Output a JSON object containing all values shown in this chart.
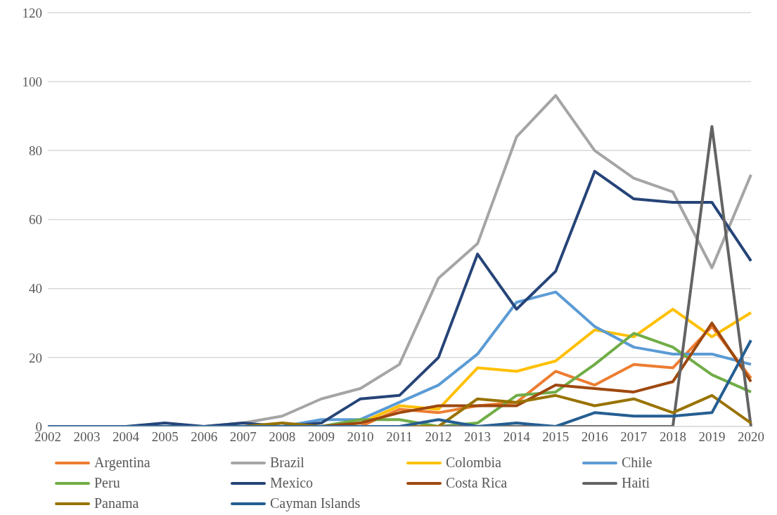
{
  "chart_data": {
    "type": "line",
    "categories": [
      "2002",
      "2003",
      "2004",
      "2005",
      "2006",
      "2007",
      "2008",
      "2009",
      "2010",
      "2011",
      "2012",
      "2013",
      "2014",
      "2015",
      "2016",
      "2017",
      "2018",
      "2019",
      "2020"
    ],
    "series": [
      {
        "name": "Argentina",
        "color": "#ed7d31",
        "values": [
          null,
          null,
          null,
          null,
          null,
          null,
          null,
          0,
          0,
          5,
          4,
          6,
          7,
          16,
          12,
          18,
          17,
          29,
          14
        ]
      },
      {
        "name": "Brazil",
        "color": "#a5a5a5",
        "values": [
          0,
          0,
          0,
          0,
          0,
          1,
          3,
          8,
          11,
          18,
          43,
          53,
          84,
          96,
          80,
          72,
          68,
          46,
          73
        ]
      },
      {
        "name": "Colombia",
        "color": "#ffc000",
        "values": [
          null,
          null,
          null,
          null,
          null,
          null,
          null,
          0,
          1,
          6,
          5,
          17,
          16,
          19,
          28,
          26,
          34,
          26,
          33
        ]
      },
      {
        "name": "Chile",
        "color": "#5b9bd5",
        "values": [
          null,
          null,
          null,
          null,
          null,
          null,
          0,
          2,
          2,
          7,
          12,
          21,
          36,
          39,
          29,
          23,
          21,
          21,
          18
        ]
      },
      {
        "name": "Peru",
        "color": "#70ad47",
        "values": [
          null,
          null,
          null,
          null,
          null,
          null,
          null,
          0,
          2,
          2,
          0,
          1,
          9,
          10,
          18,
          27,
          23,
          15,
          10
        ]
      },
      {
        "name": "Mexico",
        "color": "#264478",
        "values": [
          0,
          0,
          0,
          1,
          0,
          1,
          0,
          1,
          8,
          9,
          20,
          50,
          34,
          45,
          74,
          66,
          65,
          65,
          48
        ]
      },
      {
        "name": "Costa Rica",
        "color": "#9e480e",
        "values": [
          null,
          null,
          null,
          null,
          null,
          null,
          null,
          0,
          1,
          4,
          6,
          6,
          6,
          12,
          11,
          10,
          13,
          30,
          13
        ]
      },
      {
        "name": "Haiti",
        "color": "#636363",
        "values": [
          null,
          null,
          null,
          null,
          null,
          null,
          null,
          0,
          0,
          0,
          0,
          0,
          0,
          0,
          0,
          0,
          0,
          87,
          0
        ]
      },
      {
        "name": "Panama",
        "color": "#997300",
        "values": [
          null,
          null,
          null,
          null,
          null,
          0,
          1,
          0,
          0,
          0,
          0,
          8,
          7,
          9,
          6,
          8,
          4,
          9,
          1
        ]
      },
      {
        "name": "Cayman Islands",
        "color": "#255e91",
        "values": [
          0,
          0,
          0,
          0,
          0,
          0,
          0,
          0,
          0,
          0,
          2,
          0,
          1,
          0,
          4,
          3,
          3,
          4,
          25
        ]
      }
    ],
    "ylim": [
      0,
      120
    ],
    "yticks": [
      0,
      20,
      40,
      60,
      80,
      100,
      120
    ],
    "grid": "y",
    "legend": "bottom",
    "marker": "none",
    "line_style": "solid"
  }
}
